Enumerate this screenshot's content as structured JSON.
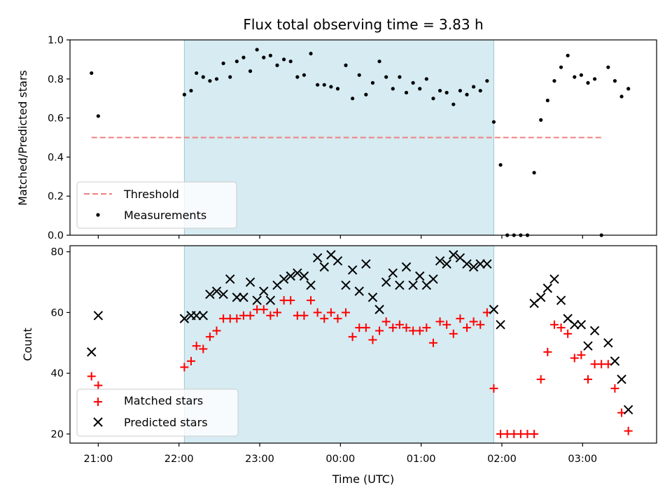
{
  "chart_data": [
    {
      "type": "scatter",
      "panel": "top",
      "title": "Flux total observing time = 3.83 h",
      "xlabel": "",
      "ylabel": "Matched/Predicted stars",
      "ylim": [
        0,
        1.0
      ],
      "yticks": [
        "0.0",
        "0.2",
        "0.4",
        "0.6",
        "0.8",
        "1.0"
      ],
      "x_unit": "minutes after 21:00 UTC",
      "shaded_span": [
        64,
        294
      ],
      "legend_position": "lower-left",
      "threshold": {
        "name": "Threshold",
        "value": 0.5,
        "x_range": [
          -5,
          375
        ],
        "color": "#f08080"
      },
      "series": [
        {
          "name": "Measurements",
          "color": "#000000",
          "points": [
            [
              -5,
              0.83
            ],
            [
              0,
              0.61
            ],
            [
              64,
              0.72
            ],
            [
              69,
              0.74
            ],
            [
              73,
              0.83
            ],
            [
              78,
              0.81
            ],
            [
              83,
              0.79
            ],
            [
              88,
              0.8
            ],
            [
              93,
              0.88
            ],
            [
              98,
              0.81
            ],
            [
              103,
              0.89
            ],
            [
              108,
              0.91
            ],
            [
              113,
              0.84
            ],
            [
              118,
              0.95
            ],
            [
              123,
              0.91
            ],
            [
              128,
              0.92
            ],
            [
              133,
              0.87
            ],
            [
              138,
              0.9
            ],
            [
              143,
              0.89
            ],
            [
              148,
              0.81
            ],
            [
              153,
              0.82
            ],
            [
              158,
              0.93
            ],
            [
              163,
              0.77
            ],
            [
              168,
              0.77
            ],
            [
              173,
              0.76
            ],
            [
              178,
              0.75
            ],
            [
              184,
              0.87
            ],
            [
              189,
              0.7
            ],
            [
              194,
              0.82
            ],
            [
              199,
              0.72
            ],
            [
              204,
              0.78
            ],
            [
              209,
              0.89
            ],
            [
              214,
              0.81
            ],
            [
              219,
              0.75
            ],
            [
              224,
              0.81
            ],
            [
              229,
              0.73
            ],
            [
              234,
              0.78
            ],
            [
              239,
              0.75
            ],
            [
              244,
              0.8
            ],
            [
              249,
              0.7
            ],
            [
              254,
              0.74
            ],
            [
              259,
              0.73
            ],
            [
              264,
              0.67
            ],
            [
              269,
              0.74
            ],
            [
              274,
              0.72
            ],
            [
              279,
              0.76
            ],
            [
              284,
              0.74
            ],
            [
              289,
              0.79
            ],
            [
              294,
              0.58
            ],
            [
              299,
              0.36
            ],
            [
              304,
              0.0
            ],
            [
              309,
              0.0
            ],
            [
              314,
              0.0
            ],
            [
              319,
              0.0
            ],
            [
              324,
              0.32
            ],
            [
              329,
              0.59
            ],
            [
              334,
              0.69
            ],
            [
              339,
              0.79
            ],
            [
              344,
              0.86
            ],
            [
              349,
              0.92
            ],
            [
              354,
              0.81
            ],
            [
              359,
              0.82
            ],
            [
              364,
              0.78
            ],
            [
              369,
              0.8
            ],
            [
              374,
              0.0
            ],
            [
              379,
              0.86
            ],
            [
              384,
              0.79
            ],
            [
              389,
              0.71
            ],
            [
              394,
              0.75
            ]
          ]
        }
      ]
    },
    {
      "type": "scatter",
      "panel": "bottom",
      "title": "",
      "xlabel": "Time (UTC)",
      "ylabel": "Count",
      "ylim": [
        17,
        82
      ],
      "yticks": [
        "20",
        "40",
        "60",
        "80"
      ],
      "x_unit": "minutes after 21:00 UTC",
      "xlim": [
        -21,
        415
      ],
      "xtick_minutes": [
        0,
        60,
        120,
        180,
        240,
        300,
        360
      ],
      "xticks": [
        "21:00",
        "22:00",
        "23:00",
        "00:00",
        "01:00",
        "02:00",
        "03:00"
      ],
      "shaded_span": [
        64,
        294
      ],
      "legend_position": "lower-left",
      "series": [
        {
          "name": "Matched stars",
          "color": "#ff0000",
          "marker": "plus",
          "points": [
            [
              -5,
              39
            ],
            [
              0,
              36
            ],
            [
              64,
              42
            ],
            [
              69,
              44
            ],
            [
              73,
              49
            ],
            [
              78,
              48
            ],
            [
              83,
              52
            ],
            [
              88,
              54
            ],
            [
              93,
              58
            ],
            [
              98,
              58
            ],
            [
              103,
              58
            ],
            [
              108,
              59
            ],
            [
              113,
              59
            ],
            [
              118,
              61
            ],
            [
              123,
              61
            ],
            [
              128,
              59
            ],
            [
              133,
              60
            ],
            [
              138,
              64
            ],
            [
              143,
              64
            ],
            [
              148,
              59
            ],
            [
              153,
              59
            ],
            [
              158,
              64
            ],
            [
              163,
              60
            ],
            [
              168,
              58
            ],
            [
              173,
              60
            ],
            [
              178,
              58
            ],
            [
              184,
              60
            ],
            [
              189,
              52
            ],
            [
              194,
              55
            ],
            [
              199,
              55
            ],
            [
              204,
              51
            ],
            [
              209,
              54
            ],
            [
              214,
              57
            ],
            [
              219,
              55
            ],
            [
              224,
              56
            ],
            [
              229,
              55
            ],
            [
              234,
              54
            ],
            [
              239,
              54
            ],
            [
              244,
              55
            ],
            [
              249,
              50
            ],
            [
              254,
              57
            ],
            [
              259,
              56
            ],
            [
              264,
              53
            ],
            [
              269,
              58
            ],
            [
              274,
              55
            ],
            [
              279,
              57
            ],
            [
              284,
              56
            ],
            [
              289,
              60
            ],
            [
              294,
              35
            ],
            [
              299,
              20
            ],
            [
              304,
              20
            ],
            [
              309,
              20
            ],
            [
              314,
              20
            ],
            [
              319,
              20
            ],
            [
              324,
              20
            ],
            [
              329,
              38
            ],
            [
              334,
              47
            ],
            [
              339,
              56
            ],
            [
              344,
              55
            ],
            [
              349,
              53
            ],
            [
              354,
              45
            ],
            [
              359,
              46
            ],
            [
              364,
              38
            ],
            [
              369,
              43
            ],
            [
              374,
              43
            ],
            [
              379,
              43
            ],
            [
              384,
              35
            ],
            [
              389,
              27
            ],
            [
              394,
              21
            ]
          ]
        },
        {
          "name": "Predicted stars",
          "color": "#000000",
          "marker": "x",
          "points": [
            [
              -5,
              47
            ],
            [
              0,
              59
            ],
            [
              64,
              58
            ],
            [
              69,
              59
            ],
            [
              73,
              59
            ],
            [
              78,
              59
            ],
            [
              83,
              66
            ],
            [
              88,
              67
            ],
            [
              93,
              66
            ],
            [
              98,
              71
            ],
            [
              103,
              65
            ],
            [
              108,
              65
            ],
            [
              113,
              70
            ],
            [
              118,
              64
            ],
            [
              123,
              67
            ],
            [
              128,
              64
            ],
            [
              133,
              69
            ],
            [
              138,
              71
            ],
            [
              143,
              72
            ],
            [
              148,
              73
            ],
            [
              153,
              72
            ],
            [
              158,
              69
            ],
            [
              163,
              78
            ],
            [
              168,
              75
            ],
            [
              173,
              79
            ],
            [
              178,
              77
            ],
            [
              184,
              69
            ],
            [
              189,
              74
            ],
            [
              194,
              67
            ],
            [
              199,
              76
            ],
            [
              204,
              65
            ],
            [
              209,
              61
            ],
            [
              214,
              70
            ],
            [
              219,
              73
            ],
            [
              224,
              69
            ],
            [
              229,
              75
            ],
            [
              234,
              69
            ],
            [
              239,
              72
            ],
            [
              244,
              69
            ],
            [
              249,
              71
            ],
            [
              254,
              77
            ],
            [
              259,
              76
            ],
            [
              264,
              79
            ],
            [
              269,
              78
            ],
            [
              274,
              76
            ],
            [
              279,
              75
            ],
            [
              284,
              76
            ],
            [
              289,
              76
            ],
            [
              294,
              61
            ],
            [
              299,
              56
            ],
            [
              324,
              63
            ],
            [
              329,
              65
            ],
            [
              334,
              68
            ],
            [
              339,
              71
            ],
            [
              344,
              64
            ],
            [
              349,
              58
            ],
            [
              354,
              56
            ],
            [
              359,
              56
            ],
            [
              364,
              49
            ],
            [
              369,
              54
            ],
            [
              379,
              50
            ],
            [
              384,
              44
            ],
            [
              389,
              38
            ],
            [
              394,
              28
            ]
          ]
        }
      ]
    }
  ]
}
